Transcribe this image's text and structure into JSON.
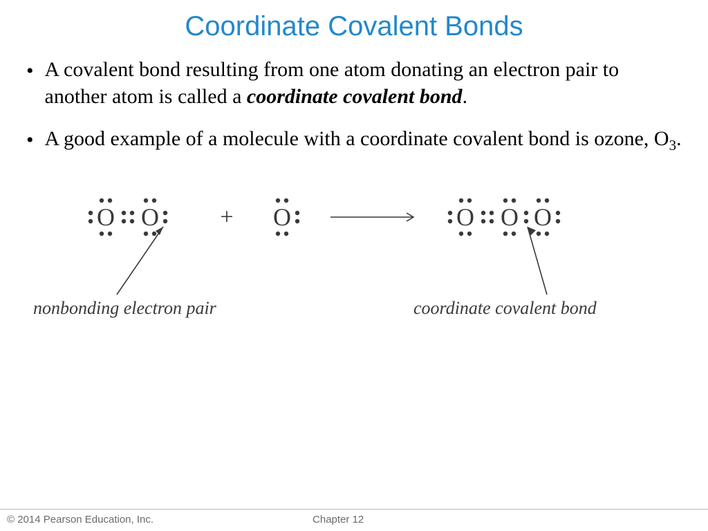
{
  "title": {
    "text": "Coordinate Covalent Bonds",
    "color": "#2288cc",
    "fontsize": 40
  },
  "bullets": [
    {
      "prefix": "A covalent bond resulting from one atom donating an electron pair to another atom is called a ",
      "emph": "coordinate covalent bond",
      "suffix": "."
    },
    {
      "prefix": "A good example of a molecule with a coordinate covalent bond is ozone, O",
      "sub": "3",
      "suffix2": "."
    }
  ],
  "body_fontsize": 30,
  "body_color": "#000000",
  "diagram": {
    "type": "lewis-structure",
    "text_color": "#3a3a3a",
    "dot_radius": 3.2,
    "atom_fontsize": 36,
    "label_fontsize": 26,
    "plus_fontsize": 34,
    "arrow_stroke": "#3a3a3a",
    "arrow_width": 1.6,
    "label_left": "nonbonding electron pair",
    "label_right": "coordinate covalent bond",
    "reactant1_atoms": [
      "O",
      "O"
    ],
    "reactant2_atoms": [
      "O"
    ],
    "product_atoms": [
      "O",
      "O",
      "O"
    ]
  },
  "footer": {
    "copyright": "© 2014 Pearson Education, Inc.",
    "chapter": "Chapter 12",
    "fontsize": 15,
    "color": "#6a6a6a",
    "border_color": "#b8b8b8"
  }
}
